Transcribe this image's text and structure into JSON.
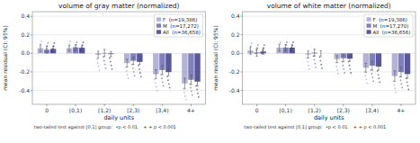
{
  "chart_data": [
    {
      "type": "bar",
      "title": "volume of gray matter (normalized)",
      "x_label": "daily units",
      "y_label": "mean residual (CI: 95%)",
      "annotations": [
        "two-tailed test against [0,1] group:  •p < 0.01,   + + p < 0.001"
      ],
      "categories": [
        "0",
        "[0,1)",
        "[1,2)",
        "[2,3)",
        "[3,4)",
        "4+"
      ],
      "ylim": [
        -0.55,
        0.45
      ],
      "yticks": [
        -0.4,
        -0.2,
        {
          "value": 0.0,
          "label": "0.0"
        },
        0.2,
        0.4
      ],
      "grid": true,
      "legend": "upper right",
      "series": [
        {
          "name": "F  (n=19,386)",
          "color": "#9999cc",
          "values": [
            0.055,
            0.055,
            -0.015,
            -0.105,
            -0.225,
            -0.325
          ],
          "errors": [
            0.038,
            0.032,
            0.038,
            0.042,
            0.048,
            0.058
          ],
          "points": [
            [
              0.04,
              0.07,
              0.1,
              0.13
            ],
            [
              0.04,
              0.07,
              0.1,
              0.13
            ],
            [
              -0.06,
              -0.1,
              -0.14,
              -0.18
            ],
            [
              -0.15,
              -0.19,
              -0.23,
              -0.27
            ],
            [
              -0.28,
              -0.32,
              -0.36,
              -0.4
            ],
            [
              -0.38,
              -0.42,
              -0.46,
              -0.5
            ]
          ]
        },
        {
          "name": "M  (n=17,272)",
          "color": "#5555aa",
          "values": [
            0.04,
            0.065,
            0.005,
            -0.08,
            -0.18,
            -0.285
          ],
          "errors": [
            0.038,
            0.028,
            0.038,
            0.038,
            0.048,
            0.052
          ],
          "points": [
            [
              0.02,
              0.05,
              0.08,
              0.11
            ],
            [
              0.03,
              0.06,
              0.09,
              0.12
            ],
            [
              -0.04,
              -0.08,
              -0.12,
              -0.16
            ],
            [
              -0.12,
              -0.16,
              -0.2,
              -0.24
            ],
            [
              -0.23,
              -0.27,
              -0.31,
              -0.35
            ],
            [
              -0.33,
              -0.37,
              -0.41,
              -0.45
            ]
          ]
        },
        {
          "name": "All  (n=36,658)",
          "color": "#222277",
          "values": [
            0.048,
            0.06,
            -0.008,
            -0.092,
            -0.202,
            -0.305
          ],
          "errors": [
            0.028,
            0.022,
            0.028,
            0.028,
            0.038,
            0.048
          ],
          "points": [
            [
              0.02,
              0.05,
              0.08,
              0.11
            ],
            [
              0.03,
              0.06,
              0.09,
              0.12
            ],
            [
              -0.05,
              -0.09,
              -0.13,
              -0.17
            ],
            [
              -0.13,
              -0.17,
              -0.21,
              -0.25
            ],
            [
              -0.25,
              -0.29,
              -0.33,
              -0.37
            ],
            [
              -0.35,
              -0.39,
              -0.43,
              -0.47
            ]
          ]
        }
      ]
    },
    {
      "type": "bar",
      "title": "volume of white matter (normalized)",
      "x_label": "daily units",
      "y_label": "mean residual (CI: 95%)",
      "annotations": [
        "two-tailed test against [0,1] group:  •p < 0.01,   + + p < 0.001"
      ],
      "categories": [
        "0",
        "[0,1)",
        "[1,2)",
        "[2,3)",
        "[3,4)",
        "4+"
      ],
      "ylim": [
        -0.55,
        0.45
      ],
      "yticks": [
        -0.4,
        -0.2,
        {
          "value": 0.0,
          "label": "0.0"
        },
        0.2,
        0.4
      ],
      "grid": true,
      "legend": "upper right",
      "series": [
        {
          "name": "F  (n=19,386)",
          "color": "#9999cc",
          "values": [
            0.03,
            0.062,
            -0.012,
            -0.062,
            -0.155,
            -0.245
          ],
          "errors": [
            0.04,
            0.038,
            0.038,
            0.038,
            0.048,
            0.058
          ],
          "points": [
            [
              0.02,
              0.05,
              0.08,
              0.11
            ],
            [
              0.03,
              0.06,
              0.09,
              0.12
            ],
            [
              -0.05,
              -0.09,
              -0.13,
              -0.17
            ],
            [
              -0.1,
              -0.14,
              -0.18,
              -0.22
            ],
            [
              -0.2,
              -0.24,
              -0.28,
              -0.32
            ],
            [
              -0.3,
              -0.34,
              -0.38,
              -0.42
            ]
          ]
        },
        {
          "name": "M  (n=17,270)",
          "color": "#5555aa",
          "values": [
            0.01,
            0.062,
            0.008,
            -0.052,
            -0.132,
            -0.202
          ],
          "errors": [
            0.04,
            0.033,
            0.038,
            0.038,
            0.048,
            0.052
          ],
          "points": [
            [
              0.0,
              0.03,
              0.06,
              0.09
            ],
            [
              0.03,
              0.06,
              0.09,
              0.12
            ],
            [
              -0.03,
              -0.07,
              -0.11,
              -0.15
            ],
            [
              -0.09,
              -0.13,
              -0.17,
              -0.21
            ],
            [
              -0.18,
              -0.22,
              -0.26,
              -0.3
            ],
            [
              -0.25,
              -0.29,
              -0.33,
              -0.37
            ]
          ]
        },
        {
          "name": "All  (n=36,656)",
          "color": "#222277",
          "values": [
            0.02,
            0.062,
            0.0,
            -0.057,
            -0.143,
            -0.223
          ],
          "errors": [
            0.03,
            0.028,
            0.028,
            0.028,
            0.038,
            0.044
          ],
          "points": [
            [
              0.0,
              0.03,
              0.06,
              0.09
            ],
            [
              0.03,
              0.06,
              0.09,
              0.12
            ],
            [
              -0.04,
              -0.08,
              -0.12,
              -0.16
            ],
            [
              -0.09,
              -0.13,
              -0.17,
              -0.21
            ],
            [
              -0.19,
              -0.23,
              -0.27,
              -0.31
            ],
            [
              -0.27,
              -0.31,
              -0.35,
              -0.39
            ]
          ]
        }
      ]
    }
  ]
}
